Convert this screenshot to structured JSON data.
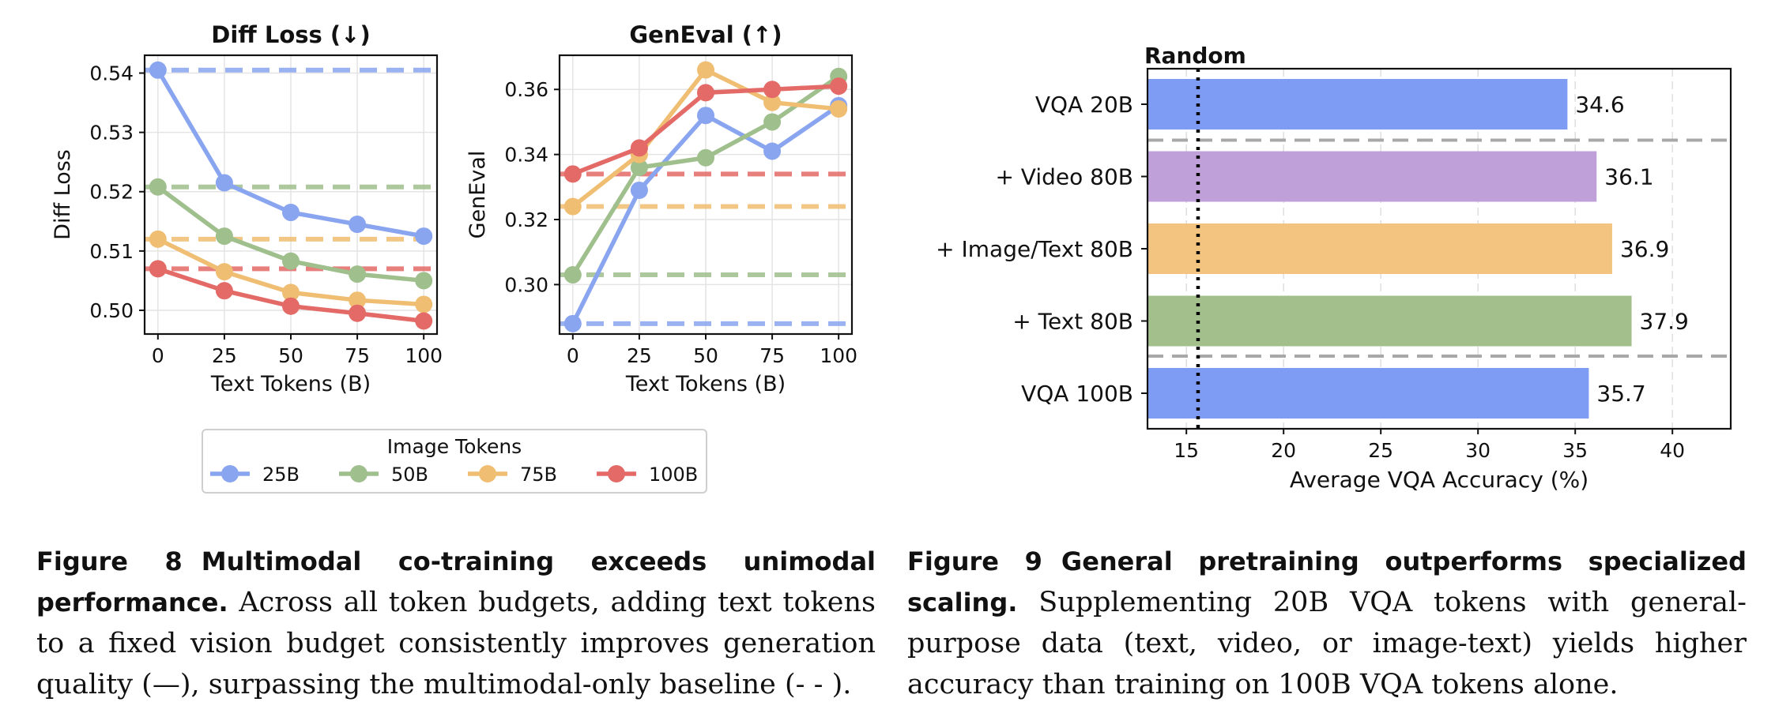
{
  "figure8": {
    "legend_title": "Image Tokens",
    "caption": {
      "label": "Figure 8",
      "heading": "Multimodal co-training exceeds unimodal performance.",
      "body": "Across all token budgets, adding text tokens to a fixed vision budget consistently improves generation quality (—), surpassing the multimodal-only baseline (- - )."
    }
  },
  "figure9": {
    "caption": {
      "label": "Figure 9",
      "heading": "General pretraining outperforms specialized scaling.",
      "body": "Supplementing 20B VQA tokens with general-purpose data (text, video, or image-text) yields higher accuracy than training on 100B VQA tokens alone."
    }
  },
  "colors": {
    "25B": "#8aa5f0",
    "50B": "#9fbf8c",
    "75B": "#f0be72",
    "100B": "#e36a66",
    "vqa": "#7f9cf5",
    "video": "#c0a0d8",
    "imagetext": "#f2c47f",
    "text": "#a2bf8c"
  },
  "chart_data": [
    {
      "type": "line",
      "title": "Diff Loss (↓)",
      "xlabel": "Text Tokens (B)",
      "ylabel": "Diff Loss",
      "x": [
        0,
        25,
        50,
        75,
        100
      ],
      "xticks": [
        "0",
        "25",
        "50",
        "75",
        "100"
      ],
      "yticks": [
        "0.50",
        "0.51",
        "0.52",
        "0.53",
        "0.54"
      ],
      "ylim": [
        0.496,
        0.543
      ],
      "xlim": [
        -5,
        105
      ],
      "grid": true,
      "legend_title": "Image Tokens",
      "series": [
        {
          "name": "25B",
          "values": [
            0.5405,
            0.5215,
            0.5165,
            0.5145,
            0.5125
          ],
          "baseline": 0.5405
        },
        {
          "name": "50B",
          "values": [
            0.5208,
            0.5125,
            0.5083,
            0.5061,
            0.505
          ],
          "baseline": 0.5208
        },
        {
          "name": "75B",
          "values": [
            0.512,
            0.5065,
            0.503,
            0.5017,
            0.501
          ],
          "baseline": 0.512
        },
        {
          "name": "100B",
          "values": [
            0.507,
            0.5033,
            0.5007,
            0.4995,
            0.4982
          ],
          "baseline": 0.507
        }
      ]
    },
    {
      "type": "line",
      "title": "GenEval (↑)",
      "xlabel": "Text Tokens (B)",
      "ylabel": "GenEval",
      "x": [
        0,
        25,
        50,
        75,
        100
      ],
      "xticks": [
        "0",
        "25",
        "50",
        "75",
        "100"
      ],
      "yticks": [
        "0.30",
        "0.32",
        "0.34",
        "0.36"
      ],
      "ylim": [
        0.2848,
        0.3705
      ],
      "xlim": [
        -5,
        105
      ],
      "grid": true,
      "series": [
        {
          "name": "25B",
          "values": [
            0.288,
            0.329,
            0.352,
            0.341,
            0.355
          ],
          "baseline": 0.288
        },
        {
          "name": "50B",
          "values": [
            0.303,
            0.336,
            0.339,
            0.35,
            0.364
          ],
          "baseline": 0.303
        },
        {
          "name": "75B",
          "values": [
            0.324,
            0.34,
            0.366,
            0.356,
            0.354
          ],
          "baseline": 0.324
        },
        {
          "name": "100B",
          "values": [
            0.334,
            0.342,
            0.359,
            0.36,
            0.361
          ],
          "baseline": 0.334
        }
      ]
    },
    {
      "type": "bar",
      "orientation": "horizontal",
      "title": "",
      "xlabel": "Average VQA Accuracy (%)",
      "ylabel": "",
      "categories": [
        "VQA 20B",
        "+ Video 80B",
        "+ Image/Text 80B",
        "+ Text 80B",
        "VQA 100B"
      ],
      "values": [
        34.6,
        36.1,
        36.9,
        37.9,
        35.7
      ],
      "value_labels": [
        "34.6",
        "36.1",
        "36.9",
        "37.9",
        "35.7"
      ],
      "color_keys": [
        "vqa",
        "video",
        "imagetext",
        "text",
        "vqa"
      ],
      "xticks": [
        "15",
        "20",
        "25",
        "30",
        "35",
        "40"
      ],
      "xlim": [
        13,
        43
      ],
      "random_baseline": 15.6,
      "random_label": "Random",
      "grid": true
    }
  ]
}
